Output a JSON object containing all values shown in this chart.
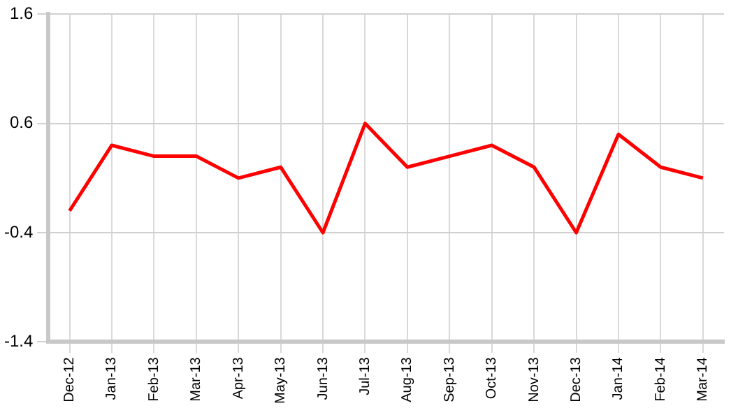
{
  "chart_data": {
    "type": "line",
    "categories": [
      "Dec-12",
      "Jan-13",
      "Feb-13",
      "Mar-13",
      "Apr-13",
      "May-13",
      "Jun-13",
      "Jul-13",
      "Aug-13",
      "Sep-13",
      "Oct-13",
      "Nov-13",
      "Dec-13",
      "Jan-14",
      "Feb-14",
      "Mar-14"
    ],
    "series": [
      {
        "color": "#ff0000",
        "values": [
          -0.2,
          0.4,
          0.3,
          0.3,
          0.1,
          0.2,
          -0.4,
          0.6,
          0.2,
          0.3,
          0.4,
          0.2,
          -0.4,
          0.5,
          0.2,
          0.1
        ]
      }
    ],
    "ylim": [
      -1.4,
      1.6
    ],
    "yticks": [
      -1.4,
      -0.4,
      0.6,
      1.6
    ],
    "grid": true,
    "legend": false,
    "marker": "none",
    "line_style": "solid"
  }
}
